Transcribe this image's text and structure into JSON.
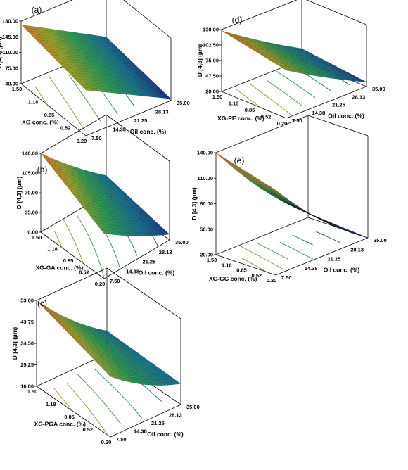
{
  "chart_data": [
    {
      "id": "a",
      "type": "surface3d",
      "panel_label": "(a)",
      "zlabel": "D[4,3] (µm)",
      "xlabel": "XG conc. (%)",
      "ylabel": "Oil conc. (%)",
      "x_ticks": [
        "1.50",
        "1.18",
        "0.85",
        "0.52",
        "0.20"
      ],
      "y_ticks": [
        "7.50",
        "14.38",
        "21.25",
        "28.13",
        "35.00"
      ],
      "z_ticks": [
        "40.00",
        "75.00",
        "110.00",
        "145.00",
        "180.00"
      ],
      "zlim": [
        40,
        180
      ],
      "corner_z": {
        "x_hi_y_lo": 172,
        "x_hi_y_hi": 142,
        "x_lo_y_lo": 66,
        "x_lo_y_hi": 44
      },
      "curvature": 0
    },
    {
      "id": "b",
      "type": "surface3d",
      "panel_label": "(b)",
      "zlabel": "D [4,3] (µm)",
      "xlabel": "XG-GA conc. (%)",
      "ylabel": "Oil conc. (%)",
      "x_ticks": [
        "1.50",
        "1.18",
        "0.85",
        "0.52",
        "0.20"
      ],
      "y_ticks": [
        "7.50",
        "14.38",
        "21.25",
        "28.13",
        "35.00"
      ],
      "z_ticks": [
        "0.00",
        "35.00",
        "70.00",
        "105.00",
        "140.00"
      ],
      "zlim": [
        0,
        140
      ],
      "corner_z": {
        "x_hi_y_lo": 140,
        "x_hi_y_hi": 80,
        "x_lo_y_lo": 32,
        "x_lo_y_hi": 10
      },
      "curvature": 0.3
    },
    {
      "id": "c",
      "type": "surface3d",
      "panel_label": "(c)",
      "zlabel": "D [4,3] (µm)",
      "xlabel": "XG-PGA conc. (%)",
      "ylabel": "Oil conc. (%)",
      "x_ticks": [
        "1.50",
        "1.18",
        "0.85",
        "0.52",
        "0.20"
      ],
      "y_ticks": [
        "7.50",
        "14.38",
        "21.25",
        "28.13",
        "35.00"
      ],
      "z_ticks": [
        "16.00",
        "25.25",
        "34.50",
        "43.75",
        "53.00"
      ],
      "zlim": [
        16,
        53
      ],
      "corner_z": {
        "x_hi_y_lo": 53,
        "x_hi_y_hi": 42,
        "x_lo_y_lo": 26,
        "x_lo_y_hi": 25
      },
      "curvature": 0.6
    },
    {
      "id": "d",
      "type": "surface3d",
      "panel_label": "(d)",
      "zlabel": "D [4,3] (µm)",
      "xlabel": "XG-PE conc. (%)",
      "ylabel": "Oil conc. (%)",
      "x_ticks": [
        "1.50",
        "1.18",
        "0.85",
        "0.52",
        "0.20"
      ],
      "y_ticks": [
        "7.50",
        "14.38",
        "21.25",
        "28.13",
        "35.00"
      ],
      "z_ticks": [
        "20.00",
        "47.50",
        "75.00",
        "102.50",
        "130.00"
      ],
      "zlim": [
        20,
        130
      ],
      "corner_z": {
        "x_hi_y_lo": 128,
        "x_hi_y_hi": 105,
        "x_lo_y_lo": 40,
        "x_lo_y_hi": 28
      },
      "curvature": 0.25
    },
    {
      "id": "e",
      "type": "surface3d",
      "panel_label": "(e)",
      "zlabel": "D [4,3] (µm)",
      "xlabel": "XG-GG conc. (%)",
      "ylabel": "Oil conc. (%)",
      "x_ticks": [
        "1.50",
        "1.18",
        "0.85",
        "0.52",
        "0.20"
      ],
      "y_ticks": [
        "7.50",
        "14.38",
        "21.25",
        "28.13",
        "35.00"
      ],
      "z_ticks": [
        "20.00",
        "50.00",
        "80.00",
        "110.00",
        "140.00"
      ],
      "zlim": [
        20,
        140
      ],
      "corner_z": {
        "x_hi_y_lo": 140,
        "x_hi_y_hi": 120,
        "x_lo_y_lo": 25,
        "x_lo_y_hi": 20
      },
      "curvature": 0.7
    }
  ]
}
